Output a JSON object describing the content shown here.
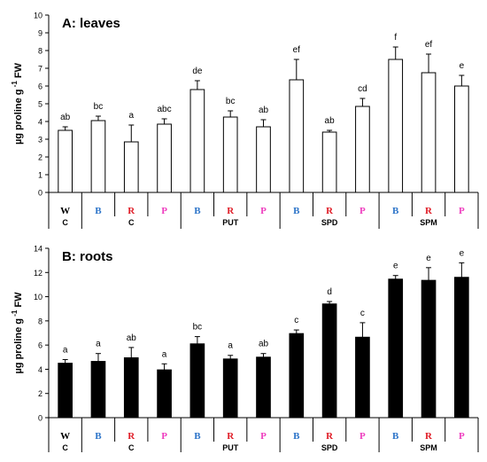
{
  "chart_data": [
    {
      "type": "bar",
      "title": "A: leaves",
      "ylabel": "µg proline g",
      "ylabel_sup": "-1",
      "ylabel_suffix": "FW",
      "ylim": [
        0,
        10
      ],
      "yticks": [
        "0",
        "1",
        "2",
        "3",
        "4",
        "5",
        "6",
        "7",
        "8",
        "9",
        "10"
      ],
      "bar_color": "#ffffff",
      "categories": [
        "W",
        "B",
        "R",
        "P",
        "B",
        "R",
        "P",
        "B",
        "R",
        "P",
        "B",
        "R",
        "P"
      ],
      "category_colors": [
        "#000000",
        "#2e75c9",
        "#e0202a",
        "#ee3fbf",
        "#2e75c9",
        "#e0202a",
        "#ee3fbf",
        "#2e75c9",
        "#e0202a",
        "#ee3fbf",
        "#2e75c9",
        "#e0202a",
        "#ee3fbf"
      ],
      "groups": [
        "C",
        "C",
        "PUT",
        "SPD",
        "SPM"
      ],
      "values": [
        3.5,
        4.05,
        2.85,
        3.85,
        5.8,
        4.25,
        3.7,
        6.35,
        3.4,
        4.85,
        7.5,
        6.75,
        6.0
      ],
      "errors": [
        0.2,
        0.25,
        0.95,
        0.3,
        0.5,
        0.35,
        0.4,
        1.15,
        0.1,
        0.45,
        0.7,
        1.05,
        0.6
      ],
      "labels": [
        "ab",
        "bc",
        "a",
        "abc",
        "de",
        "bc",
        "ab",
        "ef",
        "ab",
        "cd",
        "f",
        "ef",
        "e"
      ]
    },
    {
      "type": "bar",
      "title": "B: roots",
      "ylabel": "µg proline g",
      "ylabel_sup": "-1",
      "ylabel_suffix": "FW",
      "ylim": [
        0,
        14
      ],
      "yticks": [
        "0",
        "2",
        "4",
        "6",
        "8",
        "10",
        "12",
        "14"
      ],
      "bar_color": "#000000",
      "categories": [
        "W",
        "B",
        "R",
        "P",
        "B",
        "R",
        "P",
        "B",
        "R",
        "P",
        "B",
        "R",
        "P"
      ],
      "category_colors": [
        "#000000",
        "#2e75c9",
        "#e0202a",
        "#ee3fbf",
        "#2e75c9",
        "#e0202a",
        "#ee3fbf",
        "#2e75c9",
        "#e0202a",
        "#ee3fbf",
        "#2e75c9",
        "#e0202a",
        "#ee3fbf"
      ],
      "groups": [
        "C",
        "C",
        "PUT",
        "SPD",
        "SPM"
      ],
      "values": [
        4.5,
        4.65,
        4.95,
        3.95,
        6.1,
        4.85,
        5.0,
        6.95,
        9.4,
        6.65,
        11.45,
        11.35,
        11.6
      ],
      "errors": [
        0.3,
        0.65,
        0.85,
        0.5,
        0.6,
        0.3,
        0.3,
        0.3,
        0.2,
        1.2,
        0.3,
        1.05,
        1.2
      ],
      "labels": [
        "a",
        "a",
        "ab",
        "a",
        "bc",
        "a",
        "ab",
        "c",
        "d",
        "c",
        "e",
        "e",
        "e"
      ]
    }
  ]
}
